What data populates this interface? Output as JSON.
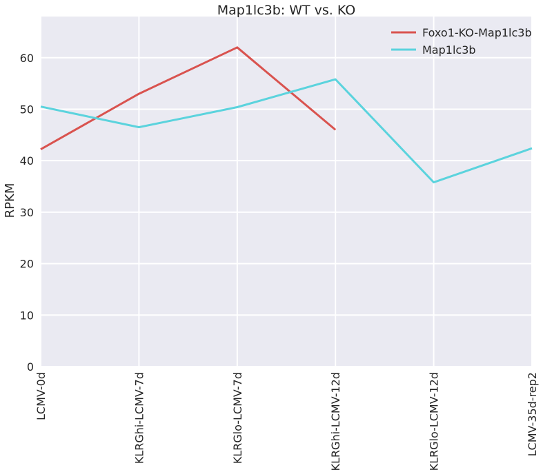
{
  "chart_data": {
    "type": "line",
    "title": "Map1lc3b: WT vs. KO",
    "xlabel": "",
    "ylabel": "RPKM",
    "categories": [
      "LCMV-0d",
      "KLRGhi-LCMV-7d",
      "KLRGlo-LCMV-7d",
      "KLRGhi-LCMV-12d",
      "KLRGlo-LCMV-12d",
      "LCMV-35d-rep2"
    ],
    "ylim": [
      0,
      68
    ],
    "yticks": [
      0,
      10,
      20,
      30,
      40,
      50,
      60
    ],
    "grid": true,
    "legend_position": "top-right",
    "series": [
      {
        "name": "Foxo1-KO-Map1lc3b",
        "color": "#d9534f",
        "values": [
          42.2,
          53.0,
          62.0,
          46.0,
          null,
          null
        ]
      },
      {
        "name": "Map1lc3b",
        "color": "#5bd3dd",
        "values": [
          50.5,
          46.5,
          50.4,
          55.8,
          35.8,
          42.4
        ]
      }
    ],
    "background": "#eaeaf2"
  }
}
